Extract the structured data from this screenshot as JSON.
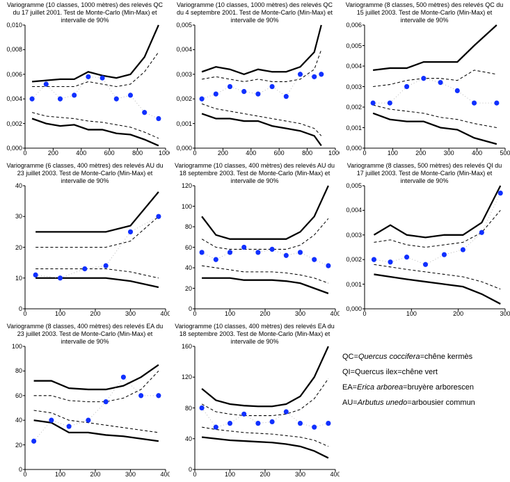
{
  "global": {
    "bg": "#ffffff",
    "series_color": "#1030ff",
    "envelope_color": "#000000",
    "dashed_color": "#000000",
    "marker_radius": 3.5,
    "line_width_bold": 2.2,
    "line_width_thin": 1.0,
    "dash_pattern": "4,3",
    "font_size_title": 9,
    "font_size_tick": 9
  },
  "panels": [
    {
      "title": "Variogramme (10 classes, 1000 mètres) des relevés QC du 17 juillet 2001. Test de Monte-Carlo (Min-Max) et intervalle de 90%",
      "xlim": [
        0,
        1000
      ],
      "xtick_step": 200,
      "ylim": [
        0,
        0.01
      ],
      "yticks": [
        "0,000",
        "0,002",
        "0,004",
        "0,006",
        "0,008",
        "0,010"
      ],
      "x": [
        50,
        150,
        250,
        350,
        450,
        550,
        650,
        750,
        850,
        950
      ],
      "blue": [
        0.004,
        0.0052,
        0.004,
        0.0043,
        0.0058,
        0.0057,
        0.004,
        0.0043,
        0.0029,
        0.0024
      ],
      "env_hi": [
        0.0054,
        0.0055,
        0.0056,
        0.0056,
        0.0062,
        0.0059,
        0.0057,
        0.006,
        0.0074,
        0.01
      ],
      "env_lo": [
        0.0024,
        0.002,
        0.0018,
        0.0019,
        0.0015,
        0.0015,
        0.0012,
        0.0011,
        0.0007,
        0.0002
      ],
      "dash_hi": [
        0.005,
        0.005,
        0.005,
        0.005,
        0.0054,
        0.0052,
        0.005,
        0.0052,
        0.0062,
        0.0078
      ],
      "dash_lo": [
        0.0029,
        0.0026,
        0.0025,
        0.0024,
        0.0022,
        0.0021,
        0.0019,
        0.0017,
        0.0013,
        0.0008
      ]
    },
    {
      "title": "Variogramme (10 classes, 1000 mètres) des relevés QC du 4 septembre 2001. Test de Monte-Carlo (Min-Max) et intervalle de 90%",
      "xlim": [
        0,
        1000
      ],
      "xtick_step": 200,
      "ylim": [
        0,
        0.005
      ],
      "yticks": [
        "0,000",
        "0,001",
        "0,002",
        "0,003",
        "0,004",
        "0,005"
      ],
      "x": [
        50,
        150,
        250,
        350,
        450,
        550,
        650,
        750,
        850,
        900
      ],
      "blue": [
        0.002,
        0.0022,
        0.0025,
        0.0023,
        0.0022,
        0.0025,
        0.0021,
        0.003,
        0.0029,
        0.003
      ],
      "env_hi": [
        0.0031,
        0.0033,
        0.0032,
        0.003,
        0.0032,
        0.0031,
        0.0031,
        0.0033,
        0.0039,
        0.005
      ],
      "env_lo": [
        0.0014,
        0.0012,
        0.0012,
        0.0011,
        0.0011,
        0.0009,
        0.0008,
        0.0007,
        0.0005,
        0.0001
      ],
      "dash_hi": [
        0.0028,
        0.0029,
        0.0028,
        0.0027,
        0.0028,
        0.0027,
        0.0027,
        0.0028,
        0.0032,
        0.004
      ],
      "dash_lo": [
        0.0018,
        0.0016,
        0.0015,
        0.0014,
        0.0013,
        0.0012,
        0.0011,
        0.001,
        0.0008,
        0.0005
      ]
    },
    {
      "title": "Variogramme (8 classes, 500 mètres) des relevés QC du 15 juillet 2003. Test de Monte-Carlo (Min-Max) et intervalle de 90%",
      "xlim": [
        0,
        500
      ],
      "xtick_step": 100,
      "ylim": [
        0,
        0.006
      ],
      "yticks": [
        "0,000",
        "0,001",
        "0,002",
        "0,003",
        "0,004",
        "0,005",
        "0,006"
      ],
      "x": [
        30,
        90,
        150,
        210,
        270,
        330,
        390,
        470
      ],
      "blue": [
        0.0022,
        0.0022,
        0.003,
        0.0034,
        0.0032,
        0.0028,
        0.0022,
        0.0022
      ],
      "env_hi": [
        0.0038,
        0.0039,
        0.0039,
        0.0042,
        0.0042,
        0.0042,
        0.005,
        0.006
      ],
      "env_lo": [
        0.0017,
        0.0014,
        0.0013,
        0.0013,
        0.001,
        0.0009,
        0.0005,
        0.0002
      ],
      "dash_hi": [
        0.003,
        0.0031,
        0.0033,
        0.0034,
        0.0034,
        0.0033,
        0.0038,
        0.0036
      ],
      "dash_lo": [
        0.0021,
        0.0019,
        0.0018,
        0.0017,
        0.0015,
        0.0014,
        0.0012,
        0.001
      ]
    },
    {
      "title": "Variogramme (6 classes, 400 mètres) des relevés AU du 23 juillet 2003. Test de Monte-Carlo (Min-Max) et intervalle de 90%",
      "xlim": [
        0,
        400
      ],
      "xtick_step": 100,
      "ylim": [
        0,
        40
      ],
      "yticks": [
        "0",
        "10",
        "20",
        "30",
        "40"
      ],
      "x": [
        30,
        100,
        170,
        230,
        300,
        380
      ],
      "blue": [
        11,
        10,
        13,
        14,
        25,
        30
      ],
      "env_hi": [
        25,
        25,
        25,
        25,
        27,
        38
      ],
      "env_lo": [
        10,
        10,
        10,
        10,
        9,
        7
      ],
      "dash_hi": [
        20,
        20,
        20,
        20,
        22,
        30
      ],
      "dash_lo": [
        13,
        13,
        13,
        13,
        12,
        10
      ]
    },
    {
      "title": "Variogramme (10 classes, 400 mètres) des relevés AU du 18 septembre 2003. Test de Monte-Carlo (Min-Max) et intervalle de 90%",
      "xlim": [
        0,
        400
      ],
      "xtick_step": 100,
      "ylim": [
        0,
        120
      ],
      "yticks": [
        "0",
        "20",
        "40",
        "60",
        "80",
        "100",
        "120"
      ],
      "x": [
        20,
        60,
        100,
        140,
        180,
        220,
        260,
        300,
        340,
        380
      ],
      "blue": [
        55,
        48,
        55,
        60,
        55,
        58,
        52,
        55,
        48,
        42
      ],
      "env_hi": [
        90,
        72,
        68,
        68,
        68,
        68,
        68,
        75,
        90,
        120
      ],
      "env_lo": [
        30,
        30,
        30,
        28,
        28,
        28,
        27,
        25,
        20,
        15
      ],
      "dash_hi": [
        68,
        60,
        58,
        58,
        58,
        58,
        58,
        62,
        72,
        88
      ],
      "dash_lo": [
        42,
        40,
        38,
        36,
        36,
        36,
        35,
        33,
        30,
        25
      ]
    },
    {
      "title": "Variogramme (8 classes, 500 mètres) des relevés QI du 17 juillet 2003. Test de Monte-Carlo (Min-Max) et intervalle de 90%",
      "xlim": [
        0,
        300
      ],
      "xtick_step": 100,
      "ylim": [
        0,
        0.005
      ],
      "yticks": [
        "0,000",
        "0,001",
        "0,002",
        "0,003",
        "0,004",
        "0,005"
      ],
      "x": [
        20,
        55,
        90,
        130,
        170,
        210,
        250,
        290
      ],
      "blue": [
        0.002,
        0.0019,
        0.0021,
        0.0018,
        0.0022,
        0.0024,
        0.0031,
        0.0047
      ],
      "env_hi": [
        0.003,
        0.0034,
        0.003,
        0.0029,
        0.003,
        0.003,
        0.0035,
        0.005
      ],
      "env_lo": [
        0.0014,
        0.0013,
        0.0012,
        0.0011,
        0.001,
        0.0009,
        0.0006,
        0.0002
      ],
      "dash_hi": [
        0.0027,
        0.0028,
        0.0026,
        0.0025,
        0.0026,
        0.0027,
        0.0031,
        0.004
      ],
      "dash_lo": [
        0.0018,
        0.0017,
        0.0016,
        0.0015,
        0.0014,
        0.0013,
        0.0011,
        0.0008
      ]
    },
    {
      "title": "Variogramme (8 classes, 400 mètres) des relevés EA du 23 juillet 2003. Test de Monte-Carlo (Min-Max) et intervalle de 90%",
      "xlim": [
        0,
        400
      ],
      "xtick_step": 100,
      "ylim": [
        0,
        100
      ],
      "yticks": [
        "0",
        "20",
        "40",
        "60",
        "80",
        "100"
      ],
      "x": [
        25,
        75,
        125,
        180,
        230,
        280,
        330,
        380
      ],
      "blue": [
        23,
        40,
        35,
        40,
        55,
        75,
        60,
        60
      ],
      "env_hi": [
        72,
        72,
        66,
        65,
        65,
        68,
        75,
        85
      ],
      "env_lo": [
        40,
        38,
        30,
        30,
        28,
        27,
        25,
        23
      ],
      "dash_hi": [
        60,
        60,
        56,
        55,
        55,
        58,
        65,
        80
      ],
      "dash_lo": [
        48,
        46,
        40,
        38,
        36,
        34,
        32,
        30
      ]
    },
    {
      "title": "Variogramme (10 classes, 400 mètres) des relevés EA du 18 septembre 2003. Test de Monte-Carlo (Min-Max) et intervalle de 90%",
      "xlim": [
        0,
        400
      ],
      "xtick_step": 100,
      "ylim": [
        0,
        160
      ],
      "yticks": [
        "0",
        "40",
        "80",
        "120",
        "160"
      ],
      "x": [
        20,
        60,
        100,
        140,
        180,
        220,
        260,
        300,
        340,
        380
      ],
      "blue": [
        80,
        55,
        60,
        72,
        60,
        62,
        75,
        60,
        55,
        60
      ],
      "env_hi": [
        105,
        90,
        85,
        83,
        82,
        82,
        85,
        95,
        120,
        160
      ],
      "env_lo": [
        42,
        40,
        38,
        37,
        36,
        35,
        33,
        30,
        24,
        15
      ],
      "dash_hi": [
        85,
        75,
        72,
        70,
        70,
        70,
        72,
        78,
        92,
        118
      ],
      "dash_lo": [
        55,
        52,
        50,
        48,
        47,
        46,
        44,
        42,
        38,
        30
      ]
    }
  ],
  "legend": [
    {
      "code": "QC",
      "latin": "Quercus coccifera",
      "eq": "=",
      "fr": "chêne kermès"
    },
    {
      "code": "QI",
      "latin": "Quercus ilex",
      "eq": "=",
      "fr": "chêne vert",
      "latin_italic": false
    },
    {
      "code": "EA",
      "latin": "Erica arborea",
      "eq": "=",
      "fr": "bruyère arborescen"
    },
    {
      "code": "AU",
      "latin": "Arbutus unedo",
      "eq": "=",
      "fr": "arbousier commun"
    }
  ]
}
